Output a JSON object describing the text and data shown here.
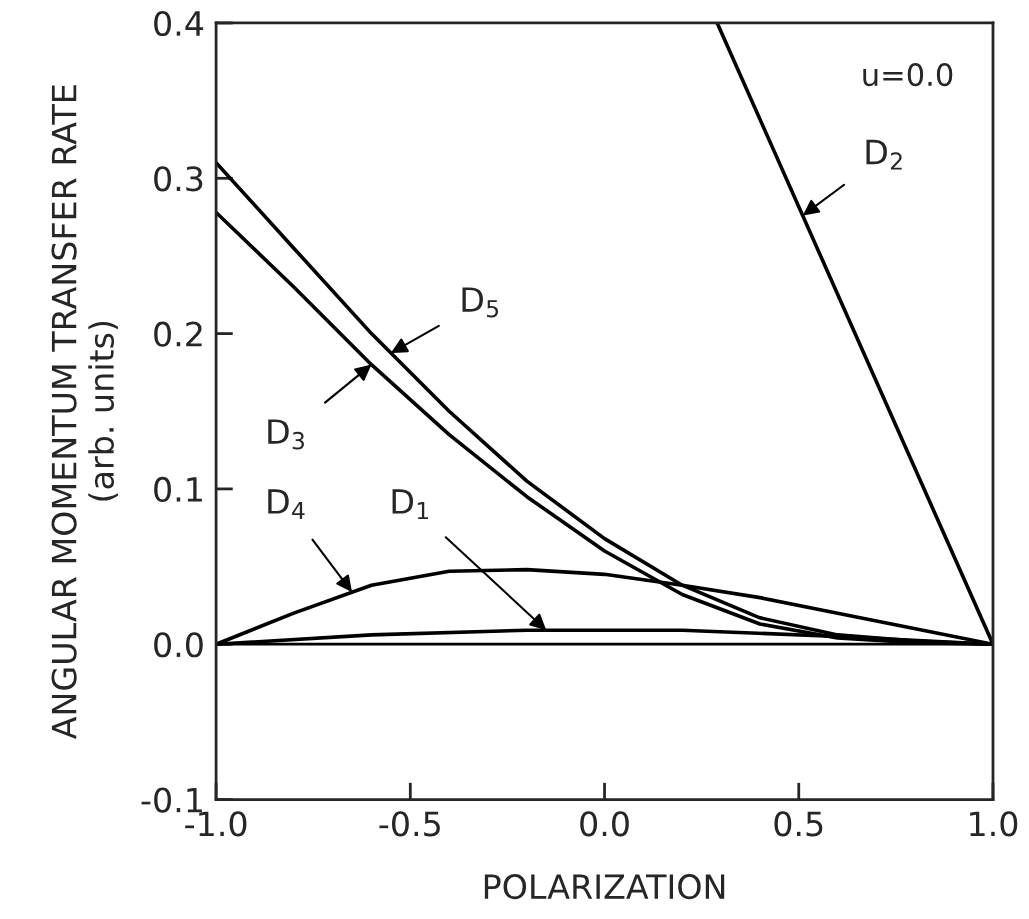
{
  "chart_data": {
    "type": "line",
    "xlabel": "POLARIZATION",
    "ylabel": "ANGULAR MOMENTUM TRANSFER RATE\n(arb. units)",
    "xlim": [
      -1.0,
      1.0
    ],
    "ylim": [
      -0.1,
      0.4
    ],
    "xticks": [
      {
        "value": -1,
        "label": "-1.0"
      },
      -0.5,
      {
        "value": 0,
        "label": "0.0"
      },
      0.5,
      {
        "value": 1,
        "label": "1.0"
      }
    ],
    "yticks": [
      -0.1,
      {
        "value": 0,
        "label": "0.0"
      },
      0.1,
      0.2,
      0.3,
      0.4
    ],
    "grid": false,
    "legend": false,
    "marker": "none",
    "line_style": "solid",
    "annotations": [
      "u=0.0"
    ],
    "ref_lines": [
      {
        "axis": "y",
        "value": 0.0,
        "color": "#000000"
      }
    ],
    "series": [
      {
        "name": "D$_{2}$",
        "color": "#000000",
        "x": [
          0.29,
          1.0
        ],
        "values": [
          0.4,
          0.0
        ]
      },
      {
        "name": "D$_{5}$",
        "color": "#000000",
        "x": [
          -1.0,
          -0.8,
          -0.6,
          -0.4,
          -0.2,
          0.0,
          0.2,
          0.4,
          0.6,
          0.8,
          1.0
        ],
        "values": [
          0.31,
          0.255,
          0.2,
          0.15,
          0.105,
          0.068,
          0.038,
          0.017,
          0.006,
          0.002,
          0.0
        ]
      },
      {
        "name": "D$_{3}$",
        "color": "#000000",
        "x": [
          -1.0,
          -0.8,
          -0.6,
          -0.4,
          -0.2,
          0.0,
          0.2,
          0.4,
          0.6,
          0.8,
          1.0
        ],
        "values": [
          0.278,
          0.23,
          0.18,
          0.135,
          0.095,
          0.06,
          0.032,
          0.013,
          0.004,
          0.001,
          0.0
        ]
      },
      {
        "name": "D$_{4}$",
        "color": "#000000",
        "x": [
          -1.0,
          -0.8,
          -0.6,
          -0.4,
          -0.2,
          0.0,
          0.2,
          0.4,
          0.6,
          0.8,
          1.0
        ],
        "values": [
          0.0,
          0.02,
          0.038,
          0.047,
          0.048,
          0.045,
          0.038,
          0.03,
          0.02,
          0.01,
          0.0
        ]
      },
      {
        "name": "D$_{1}$",
        "color": "#000000",
        "x": [
          -1.0,
          -0.6,
          -0.2,
          0.2,
          0.6,
          1.0
        ],
        "values": [
          0.0,
          0.006,
          0.009,
          0.009,
          0.005,
          0.0
        ]
      }
    ]
  }
}
